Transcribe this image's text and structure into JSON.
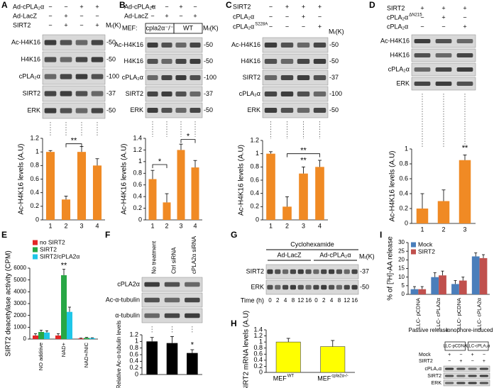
{
  "panel_labels": [
    "A",
    "B",
    "C",
    "D",
    "E",
    "F",
    "G",
    "H",
    "I"
  ],
  "blots": [
    {
      "header": [
        {
          "label": "Ad-cPLA₂α",
          "signs": [
            "−",
            "−",
            "+",
            "+"
          ]
        },
        {
          "label": "Ad-LacZ",
          "signs": [
            "−",
            "+",
            "−",
            "−"
          ]
        },
        {
          "label": "SIRT2",
          "signs": [
            "−",
            "+",
            "−",
            "+"
          ]
        }
      ],
      "rows": [
        "Ac-H4K16",
        "H4K16",
        "cPLA₂α",
        "SIRT2",
        "ERK"
      ],
      "mw": [
        "-50",
        "-50",
        "-100",
        "-37",
        "-50"
      ],
      "mw_title": "Mᵣ(K)",
      "lanes": 4
    },
    {
      "header": [
        {
          "label": "Ad-cPLA₂α",
          "signs": [
            "+",
            "−",
            "+",
            "−"
          ]
        },
        {
          "label": "Ad-LacZ",
          "signs": [
            "−",
            "+",
            "−",
            "+"
          ]
        }
      ],
      "strain_label": "MEF:",
      "strains": [
        "cpla2α⁻/⁻",
        "WT"
      ],
      "rows": [
        "Ac-H4K16",
        "H4K16",
        "cPLA₂α",
        "SIRT2",
        "ERK"
      ],
      "mw": [
        "-50",
        "-50",
        "-100",
        "-37",
        "-50"
      ],
      "mw_title": "Mᵣ(K)",
      "lanes": 4
    },
    {
      "header": [
        {
          "label": "SIRT2",
          "signs": [
            "−",
            "+",
            "+",
            "+"
          ]
        },
        {
          "label": "cPLA₂α",
          "signs": [
            "−",
            "−",
            "+",
            "−"
          ]
        },
        {
          "label": "cPLA₂α",
          "sup": "S228A",
          "signs": [
            "−",
            "−",
            "−",
            "+"
          ]
        }
      ],
      "rows": [
        "Ac-H4K16",
        "H4K16",
        "SIRT2",
        "cPLA₂α",
        "ERK"
      ],
      "mw": [
        "-50",
        "-50",
        "-37",
        "-100",
        "-50"
      ],
      "mw_title": "Mᵣ(K)",
      "lanes": 4
    },
    {
      "header": [
        {
          "label": "SIRT2",
          "signs": [
            "+",
            "+",
            "+"
          ]
        },
        {
          "label": "cPLA₂α",
          "sup": "ΔN215",
          "signs": [
            "−",
            "+",
            "−"
          ]
        },
        {
          "label": "cPLA₂α",
          "signs": [
            "−",
            "−",
            "+"
          ]
        }
      ],
      "rows": [
        "Ac-H4K16",
        "H4K16",
        "cPLA₂α",
        "ERK"
      ],
      "lanes": 3
    },
    {
      "columns": [
        "No treatment",
        "Ctrl siRNA",
        "cPLA2α siRNA"
      ],
      "rows": [
        "cPLA2α",
        "Ac-α-tubulin",
        "α-tubulin"
      ],
      "lanes": 3
    },
    {
      "treatment": "Cyclohexamide",
      "groups": [
        "Ad-LacZ",
        "Ad-cPLA₂α"
      ],
      "rows": [
        "SIRT2",
        "ERK"
      ],
      "mw": [
        "-37",
        "-50"
      ],
      "mw_title": "Mᵣ(K)",
      "time_label": "Time (h)",
      "times": [
        "0",
        "2",
        "4",
        "8",
        "12",
        "16",
        "0",
        "2",
        "4",
        "8",
        "12",
        "16"
      ],
      "lanes": 12
    },
    {
      "groups": [
        "LLC-pCDNA",
        "LLC-cPLA₂α"
      ],
      "header": [
        {
          "label": "Mock",
          "signs": [
            "+",
            "−",
            "+",
            "−"
          ]
        },
        {
          "label": "SIRT2",
          "signs": [
            "−",
            "+",
            "−",
            "+"
          ]
        }
      ],
      "rows": [
        "cPLA₂α",
        "SIRT2",
        "ERK"
      ],
      "lanes": 4
    }
  ],
  "chart_data": [
    {
      "type": "bar",
      "y_label": "Ac-H4K16 levels (A.U)",
      "categories": [
        "1",
        "2",
        "3",
        "4"
      ],
      "values": [
        1,
        0.3,
        1,
        0.8
      ],
      "errors": [
        0.02,
        0.05,
        0.08,
        0.1
      ],
      "color": "#f08a24",
      "ylim": [
        0,
        1.2
      ],
      "yticks": [
        0,
        0.2,
        0.4,
        0.6,
        0.8,
        1,
        1.2
      ],
      "annotations": [
        "**"
      ]
    },
    {
      "type": "bar",
      "y_label": "Ac-H4K16 levels (A.U)",
      "categories": [
        "1",
        "2",
        "3",
        "4"
      ],
      "values": [
        0.7,
        0.3,
        1.2,
        0.9
      ],
      "errors": [
        0.15,
        0.15,
        0.1,
        0.12
      ],
      "color": "#f08a24",
      "ylim": [
        0,
        1.4
      ],
      "yticks": [
        0,
        0.2,
        0.4,
        0.6,
        0.8,
        1,
        1.2,
        1.4
      ],
      "annotations": [
        "*",
        "*"
      ]
    },
    {
      "type": "bar",
      "y_label": "Ac-H4K16 levels (A.U)",
      "categories": [
        "1",
        "2",
        "3",
        "4"
      ],
      "values": [
        1,
        0.2,
        0.7,
        0.8
      ],
      "errors": [
        0.03,
        0.15,
        0.1,
        0.1
      ],
      "color": "#f08a24",
      "ylim": [
        0,
        1.2
      ],
      "yticks": [
        0,
        0.2,
        0.4,
        0.6,
        0.8,
        1,
        1.2
      ],
      "annotations": [
        "**",
        "**"
      ]
    },
    {
      "type": "bar",
      "y_label": "Ac-H4K16 levels (A.U)",
      "categories": [
        "1",
        "2",
        "3"
      ],
      "values": [
        0.2,
        0.3,
        0.85
      ],
      "errors": [
        0.2,
        0.15,
        0.07
      ],
      "color": "#f08a24",
      "ylim": [
        0,
        1
      ],
      "yticks": [
        0,
        0.2,
        0.4,
        0.6,
        0.8,
        1
      ],
      "annotations": [
        "**"
      ]
    },
    {
      "type": "bar",
      "y_label": "SIRT2 deacetylase activity (CPM)",
      "categories": [
        "NO additive",
        "NAD+",
        "NAD+/NIC"
      ],
      "series": [
        {
          "name": "no SIRT2",
          "color": "#e32626",
          "values": [
            300,
            300,
            50
          ],
          "errors": [
            150,
            150,
            30
          ]
        },
        {
          "name": "SIRT2",
          "color": "#28a745",
          "values": [
            600,
            5400,
            100
          ],
          "errors": [
            150,
            500,
            40
          ]
        },
        {
          "name": "SIRT2/cPLA2α",
          "color": "#1fc6e8",
          "values": [
            550,
            2300,
            80
          ],
          "errors": [
            150,
            400,
            30
          ]
        }
      ],
      "ylim": [
        0,
        6000
      ],
      "yticks": [
        0,
        1000,
        2000,
        3000,
        4000,
        5000,
        6000
      ],
      "legend": "upper left",
      "annotations": [
        "**"
      ]
    },
    {
      "type": "bar",
      "y_label": "Relative Ac-α-tubulin levels",
      "categories": [
        null,
        null,
        null
      ],
      "values": [
        1,
        0.95,
        0.65
      ],
      "errors": [
        0.12,
        0.2,
        0.1
      ],
      "color": "#000000",
      "ylim": [
        0,
        1.2
      ],
      "yticks": [
        0,
        0.2,
        0.4,
        0.6,
        0.8,
        1,
        1.2
      ],
      "annotations": [
        "*"
      ]
    },
    {
      "type": "bar",
      "y_label": "SIRT2 mRNA levels (A.U)",
      "categories": [
        "MEF",
        "MEF"
      ],
      "category_sups": [
        "WT",
        "cpla2α-/-"
      ],
      "values": [
        1,
        0.85
      ],
      "errors": [
        0.12,
        0.2
      ],
      "color": "#ffff00",
      "ylim": [
        0,
        1.4
      ],
      "yticks": [
        0,
        0.2,
        0.4,
        0.6,
        0.8,
        1,
        1.2,
        1.4
      ]
    },
    {
      "type": "bar",
      "y_label": "% of [³H]-AA release",
      "categories": [
        "LLC- pCDNA",
        "LLC- cPLA2α",
        "LLC- pCDNA",
        "LLC- cPLA2α"
      ],
      "series": [
        {
          "name": "Mock",
          "color": "#4a7ebb",
          "values": [
            3,
            10,
            6,
            22
          ],
          "errors": [
            1.5,
            2.5,
            2,
            2
          ]
        },
        {
          "name": "SIRT2",
          "color": "#c0504d",
          "values": [
            3,
            11,
            8,
            21
          ],
          "errors": [
            1.5,
            2.5,
            2,
            2
          ]
        }
      ],
      "group_labels": [
        "Passive release",
        "Ionophore-induced"
      ],
      "ylim": [
        0,
        30
      ],
      "yticks": [
        0,
        5,
        10,
        15,
        20,
        25,
        30
      ],
      "legend": "upper left"
    }
  ]
}
